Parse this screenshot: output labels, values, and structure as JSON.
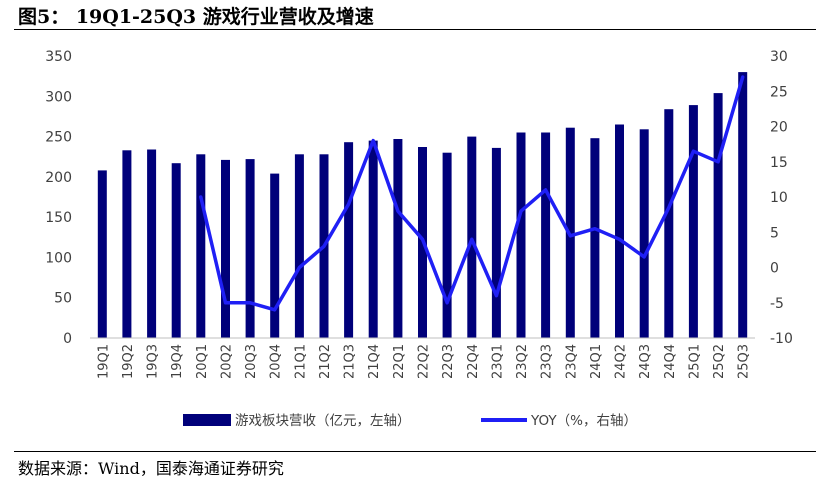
{
  "header": {
    "title": "图5：  19Q1-25Q3 游戏行业营收及增速"
  },
  "footer": {
    "source": "数据来源：Wind，国泰海通证券研究"
  },
  "colors": {
    "bar": "#00007a",
    "line": "#1f1ff5",
    "axis": "#bfbfbf",
    "text": "#404040"
  },
  "chart_data": {
    "type": "bar",
    "categories": [
      "19Q1",
      "19Q2",
      "19Q3",
      "19Q4",
      "20Q1",
      "20Q2",
      "20Q3",
      "20Q4",
      "21Q1",
      "21Q2",
      "21Q3",
      "21Q4",
      "22Q1",
      "22Q2",
      "22Q3",
      "22Q4",
      "23Q1",
      "23Q2",
      "23Q3",
      "23Q4",
      "24Q1",
      "24Q2",
      "24Q3",
      "24Q4",
      "25Q1",
      "25Q2",
      "25Q3"
    ],
    "series": [
      {
        "name": "游戏板块营收（亿元，左轴）",
        "type": "bar",
        "axis": "left",
        "values": [
          208,
          233,
          234,
          217,
          228,
          221,
          222,
          204,
          228,
          228,
          243,
          245,
          247,
          237,
          230,
          250,
          236,
          255,
          255,
          261,
          248,
          265,
          259,
          284,
          289,
          304,
          330
        ]
      },
      {
        "name": "YOY（%，右轴）",
        "type": "line",
        "axis": "right",
        "values": [
          null,
          null,
          null,
          null,
          10,
          -5,
          -5,
          -6,
          0,
          3,
          9,
          18,
          8,
          4,
          -5,
          4,
          -4,
          8,
          11,
          4.5,
          5.5,
          4,
          1.5,
          8.5,
          16.5,
          15,
          27
        ]
      }
    ],
    "left_axis": {
      "ylim": [
        0,
        350
      ],
      "ticks": [
        "0",
        "50",
        "100",
        "150",
        "200",
        "250",
        "300",
        "350"
      ]
    },
    "right_axis": {
      "ylim": [
        -10,
        30
      ],
      "ticks": [
        "-10",
        "-5",
        "0",
        "5",
        "10",
        "15",
        "20",
        "25",
        "30"
      ]
    },
    "grid": false,
    "legend": "bottom"
  }
}
